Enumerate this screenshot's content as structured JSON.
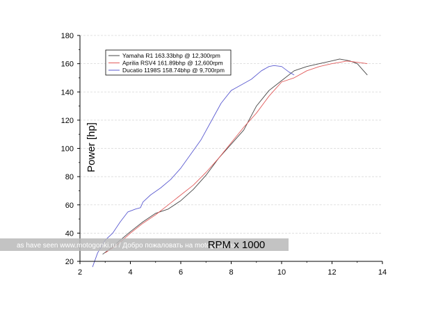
{
  "chart_data": {
    "type": "line",
    "xlabel": "RPM x 1000",
    "ylabel": "Power [hp]",
    "xlim": [
      2,
      14
    ],
    "ylim": [
      20,
      180
    ],
    "xticks": [
      2,
      4,
      6,
      8,
      10,
      12,
      14
    ],
    "yticks": [
      20,
      40,
      60,
      80,
      100,
      120,
      140,
      160,
      180
    ],
    "grid": "horizontal-dashed",
    "legend_position": "top-left",
    "series": [
      {
        "name": "Yamaha R1 163.33bhp @ 12,300rpm",
        "color": "#444444",
        "points": [
          [
            2.9,
            25
          ],
          [
            3.2,
            29
          ],
          [
            3.6,
            35
          ],
          [
            4.0,
            41
          ],
          [
            4.5,
            48
          ],
          [
            5.0,
            54
          ],
          [
            5.5,
            57
          ],
          [
            6.0,
            63
          ],
          [
            6.5,
            71
          ],
          [
            7.0,
            81
          ],
          [
            7.5,
            93
          ],
          [
            8.0,
            103
          ],
          [
            8.5,
            113
          ],
          [
            9.0,
            130
          ],
          [
            9.5,
            141
          ],
          [
            10.0,
            148
          ],
          [
            10.5,
            155
          ],
          [
            11.0,
            158
          ],
          [
            11.5,
            160
          ],
          [
            12.0,
            162
          ],
          [
            12.3,
            163.3
          ],
          [
            12.7,
            162
          ],
          [
            13.0,
            160
          ],
          [
            13.4,
            152
          ]
        ]
      },
      {
        "name": "Aprilia RSV4 161.89bhp @ 12,600rpm",
        "color": "#e15a5a",
        "points": [
          [
            3.0,
            26
          ],
          [
            3.5,
            32
          ],
          [
            4.0,
            40
          ],
          [
            4.5,
            47
          ],
          [
            5.0,
            53
          ],
          [
            5.5,
            60
          ],
          [
            6.0,
            67
          ],
          [
            6.5,
            74
          ],
          [
            7.0,
            83
          ],
          [
            7.5,
            93
          ],
          [
            8.0,
            104
          ],
          [
            8.5,
            115
          ],
          [
            9.0,
            125
          ],
          [
            9.5,
            137
          ],
          [
            10.0,
            147
          ],
          [
            10.5,
            150
          ],
          [
            11.0,
            155
          ],
          [
            11.5,
            158
          ],
          [
            12.0,
            160
          ],
          [
            12.6,
            161.9
          ],
          [
            13.0,
            161
          ],
          [
            13.4,
            160
          ]
        ]
      },
      {
        "name": "Ducatio 1198S 158.74bhp @ 9,700rpm",
        "color": "#5a5ad0",
        "points": [
          [
            2.5,
            16
          ],
          [
            2.7,
            26
          ],
          [
            3.0,
            35
          ],
          [
            3.3,
            40
          ],
          [
            3.6,
            48
          ],
          [
            3.9,
            55
          ],
          [
            4.2,
            57
          ],
          [
            4.4,
            58
          ],
          [
            4.5,
            62
          ],
          [
            4.8,
            67
          ],
          [
            5.2,
            72
          ],
          [
            5.6,
            78
          ],
          [
            6.0,
            86
          ],
          [
            6.4,
            96
          ],
          [
            6.8,
            106
          ],
          [
            7.2,
            119
          ],
          [
            7.6,
            132
          ],
          [
            8.0,
            141
          ],
          [
            8.4,
            145
          ],
          [
            8.8,
            149
          ],
          [
            9.2,
            155
          ],
          [
            9.5,
            158
          ],
          [
            9.7,
            158.7
          ],
          [
            10.0,
            158
          ],
          [
            10.3,
            154
          ],
          [
            10.5,
            152
          ]
        ]
      }
    ]
  },
  "watermark": {
    "text": "as have seen  www.motogonki.ru / Добро пожаловать на motogonki.ru"
  }
}
